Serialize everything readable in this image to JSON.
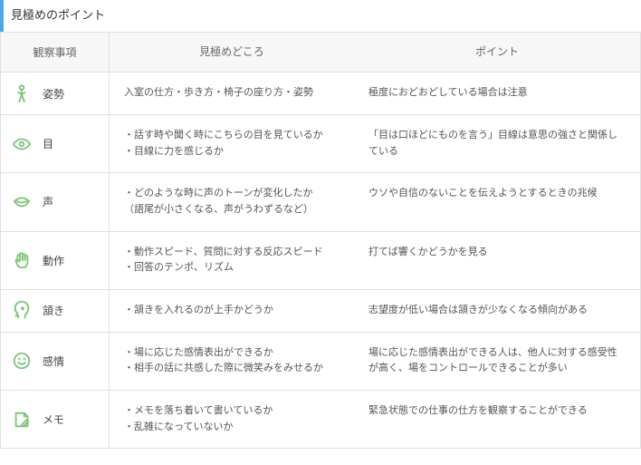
{
  "title": "見極めのポイント",
  "headers": {
    "c1": "観察事項",
    "c2": "見極めどころ",
    "c3": "ポイント"
  },
  "rows": [
    {
      "label": "姿勢",
      "c2": "入室の仕方・歩き方・椅子の座り方・姿勢",
      "c3": "極度におどおどしている場合は注意"
    },
    {
      "label": "目",
      "c2": "・話す時や聞く時にこちらの目を見ているか\n・目線に力を感じるか",
      "c3": "「目は口ほどにものを言う」目線は意思の強さと関係している"
    },
    {
      "label": "声",
      "c2": "・どのような時に声のトーンが変化したか\n（語尾が小さくなる、声がうわずるなど）",
      "c3": "ウソや自信のないことを伝えようとするときの兆候"
    },
    {
      "label": "動作",
      "c2": "・動作スピード、質問に対する反応スピード\n・回答のテンポ、リズム",
      "c3": "打てば響くかどうかを見る"
    },
    {
      "label": "頷き",
      "c2": "・頷きを入れるのが上手かどうか",
      "c3": "志望度が低い場合は頷きが少なくなる傾向がある"
    },
    {
      "label": "感情",
      "c2": "・場に応じた感情表出ができるか\n・相手の話に共感した際に微笑みをみせるか",
      "c3": "場に応じた感情表出ができる人は、他人に対する感受性が高く、場をコントロールできることが多い"
    },
    {
      "label": "メモ",
      "c2": "・メモを落ち着いて書いているか\n・乱雑になっていないか",
      "c3": "緊急状態での仕事の仕方を観察することができる"
    }
  ]
}
